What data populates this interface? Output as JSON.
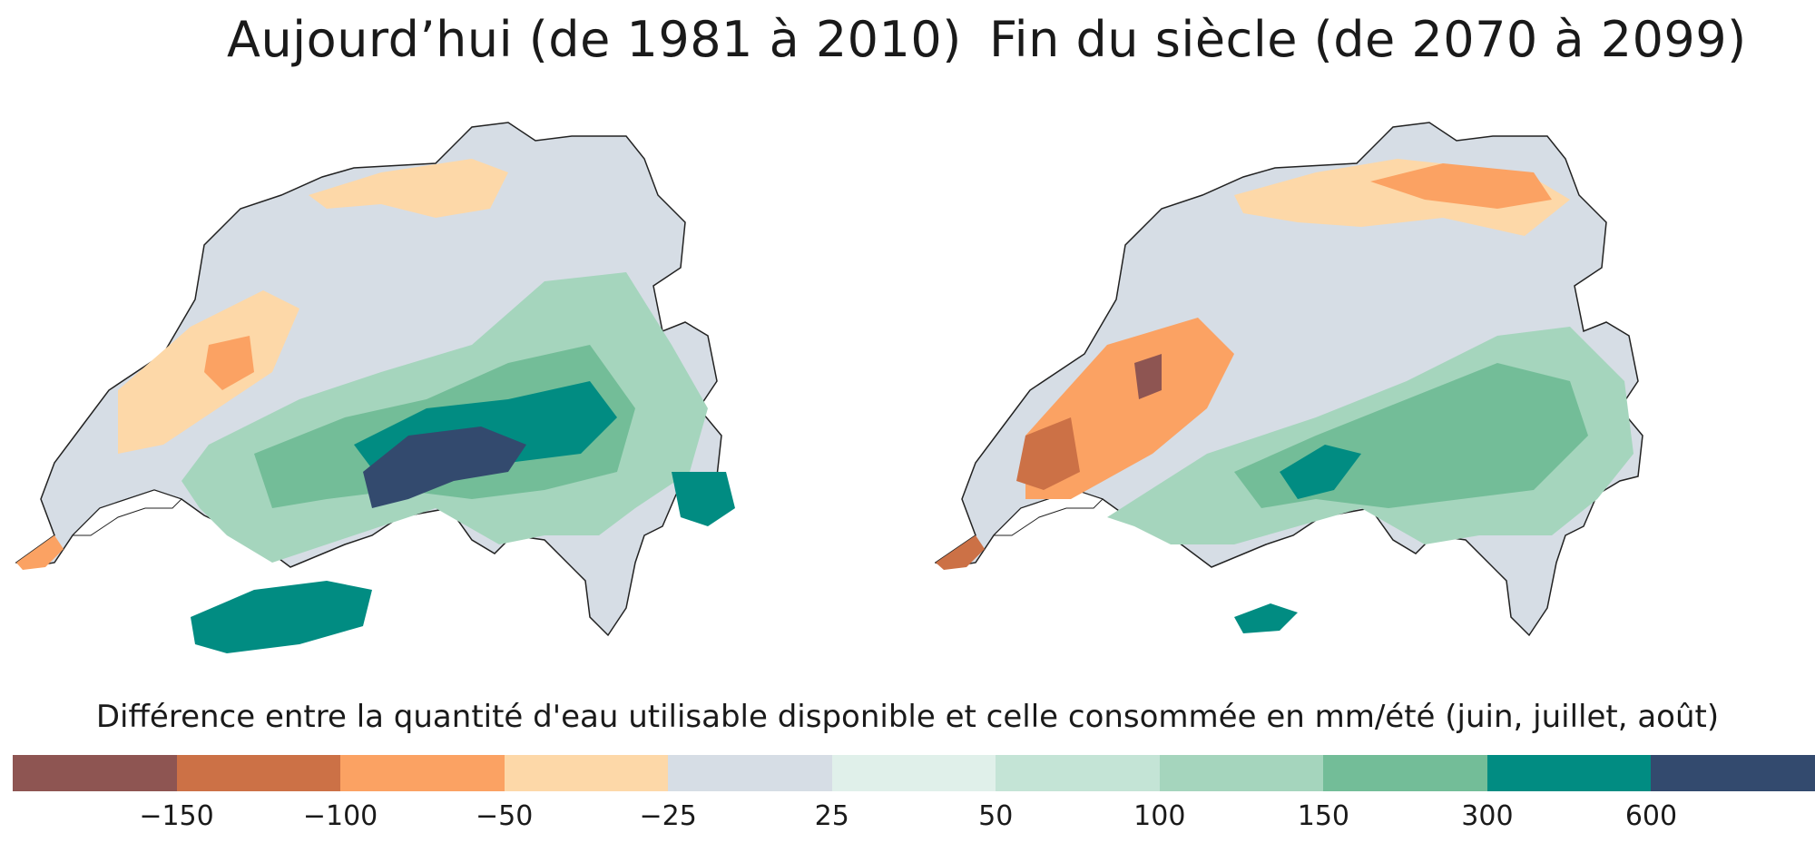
{
  "titles": {
    "left": "Aujourd’hui (de 1981 à 2010)",
    "right": "Fin du siècle (de 2070 à 2099)"
  },
  "legend": {
    "title": "Différence entre la quantité d'eau utilisable disponible et celle consommée en mm/été (juin, juillet, août)",
    "classes": [
      {
        "color": "#8e5552"
      },
      {
        "color": "#cc7146"
      },
      {
        "color": "#fba263"
      },
      {
        "color": "#fdd8a8"
      },
      {
        "color": "#d6dde5"
      },
      {
        "color": "#e0f0ea"
      },
      {
        "color": "#c4e4d6"
      },
      {
        "color": "#a5d5bd"
      },
      {
        "color": "#73bd98"
      },
      {
        "color": "#018c82"
      },
      {
        "color": "#334a6e"
      }
    ],
    "ticks": [
      "−150",
      "−100",
      "−50",
      "−25",
      "25",
      "50",
      "100",
      "150",
      "300",
      "600"
    ]
  }
}
